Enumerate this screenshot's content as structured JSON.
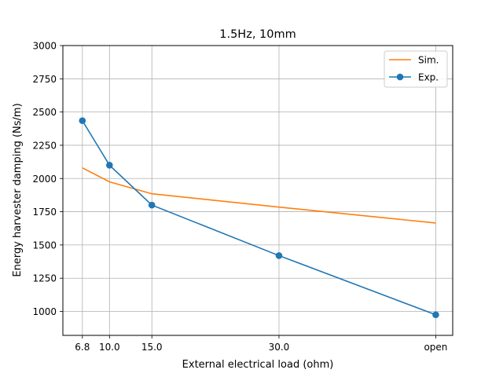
{
  "chart_data": {
    "type": "line",
    "title": "1.5Hz, 10mm",
    "xlabel": "External electrical load (ohm)",
    "ylabel": "Energy harvester damping (Ns/m)",
    "x": [
      6.8,
      10.0,
      15.0,
      30.0,
      48.5
    ],
    "x_tick_labels": [
      "6.8",
      "10.0",
      "15.0",
      "30.0",
      "open"
    ],
    "xlim": [
      4.5,
      50.5
    ],
    "ylim": [
      820,
      3000
    ],
    "y_ticks": [
      1000,
      1250,
      1500,
      1750,
      2000,
      2250,
      2500,
      2750,
      3000
    ],
    "grid": true,
    "legend_position": "top-right",
    "series": [
      {
        "name": "Sim.",
        "color": "#ff7f0e",
        "marker": "none",
        "values": [
          2080,
          1975,
          1885,
          1785,
          1665
        ]
      },
      {
        "name": "Exp.",
        "color": "#1f77b4",
        "marker": "circle",
        "values": [
          2435,
          2100,
          1800,
          1420,
          975
        ]
      }
    ]
  }
}
